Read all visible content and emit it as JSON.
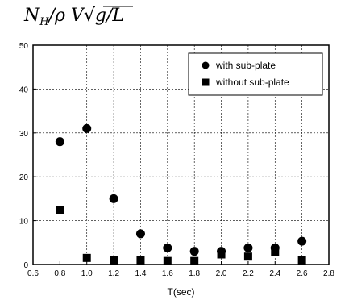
{
  "ylabel": "N_H/ρV√(g/L)",
  "chart_data": {
    "type": "scatter",
    "title": "",
    "xlabel": "T(sec)",
    "ylabel": "N_H/ρV√(g/L)",
    "xlim": [
      0.6,
      2.8
    ],
    "ylim": [
      0,
      50
    ],
    "xticks": [
      "0.6",
      "0.8",
      "1.0",
      "1.2",
      "1.4",
      "1.6",
      "1.8",
      "2.0",
      "2.2",
      "2.4",
      "2.6",
      "2.8"
    ],
    "yticks": [
      "0",
      "10",
      "20",
      "30",
      "40",
      "50"
    ],
    "grid": true,
    "legend_position": "top-right",
    "series": [
      {
        "name": "with sub-plate",
        "marker": "circle",
        "color": "#000000",
        "points": [
          {
            "x": 0.8,
            "y": 28
          },
          {
            "x": 1.0,
            "y": 31
          },
          {
            "x": 1.2,
            "y": 15
          },
          {
            "x": 1.4,
            "y": 7
          },
          {
            "x": 1.6,
            "y": 3.8
          },
          {
            "x": 1.8,
            "y": 3
          },
          {
            "x": 2.0,
            "y": 3
          },
          {
            "x": 2.2,
            "y": 3.8
          },
          {
            "x": 2.4,
            "y": 3.8
          },
          {
            "x": 2.6,
            "y": 5.3
          }
        ]
      },
      {
        "name": "without sub-plate",
        "marker": "square",
        "color": "#000000",
        "points": [
          {
            "x": 0.8,
            "y": 12.5
          },
          {
            "x": 1.0,
            "y": 1.5
          },
          {
            "x": 1.2,
            "y": 1
          },
          {
            "x": 1.4,
            "y": 1
          },
          {
            "x": 1.6,
            "y": 0.8
          },
          {
            "x": 1.8,
            "y": 0.8
          },
          {
            "x": 2.0,
            "y": 2.3
          },
          {
            "x": 2.2,
            "y": 1.8
          },
          {
            "x": 2.4,
            "y": 2.8
          },
          {
            "x": 2.6,
            "y": 1
          }
        ]
      }
    ]
  }
}
